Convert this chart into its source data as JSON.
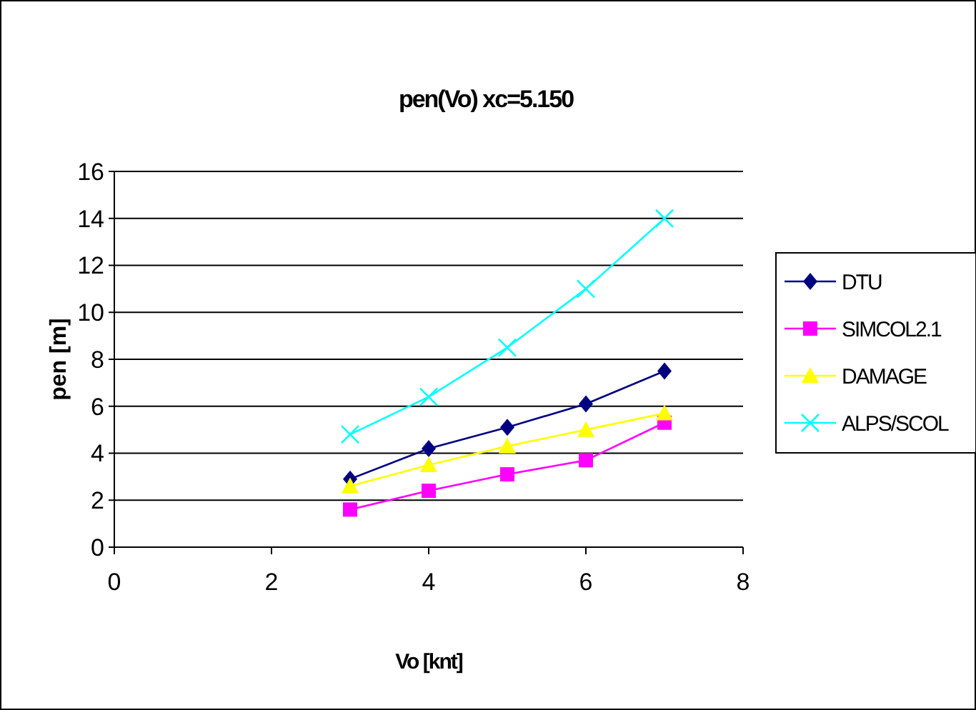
{
  "chart_data": {
    "type": "line",
    "title": "pen(Vo) xc=5.150",
    "xlabel": "Vo [knt]",
    "ylabel": "pen [m]",
    "x": [
      3,
      4,
      5,
      6,
      7
    ],
    "xlim": [
      0,
      8
    ],
    "xticks": [
      0,
      2,
      4,
      6,
      8
    ],
    "ylim": [
      0,
      16
    ],
    "yticks": [
      0,
      2,
      4,
      6,
      8,
      10,
      12,
      14,
      16
    ],
    "grid": "y",
    "legend": "right",
    "series": [
      {
        "name": "DTU",
        "color": "#000080",
        "marker": "diamond",
        "values": [
          2.9,
          4.2,
          5.1,
          6.1,
          7.5
        ]
      },
      {
        "name": "SIMCOL2.1",
        "color": "#ff00ff",
        "marker": "square",
        "values": [
          1.6,
          2.4,
          3.1,
          3.7,
          5.3
        ]
      },
      {
        "name": "DAMAGE",
        "color": "#ffff00",
        "marker": "triangle",
        "values": [
          2.6,
          3.5,
          4.3,
          5.0,
          5.7
        ]
      },
      {
        "name": "ALPS/SCOL",
        "color": "#00ffff",
        "marker": "cross",
        "values": [
          4.8,
          6.4,
          8.5,
          11,
          14
        ]
      }
    ]
  }
}
